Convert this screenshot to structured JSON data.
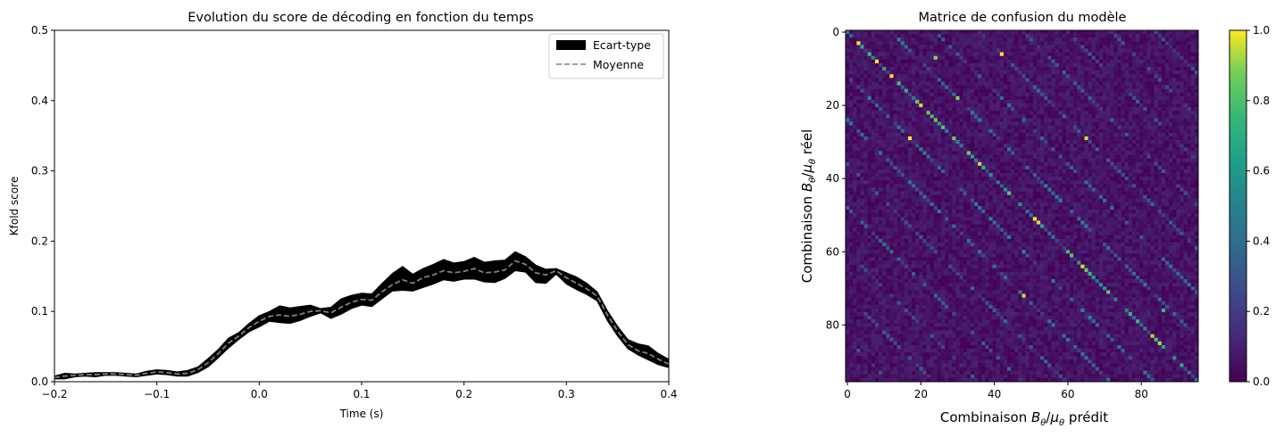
{
  "chart_data": [
    {
      "type": "line",
      "title": "Evolution du score de décoding en fonction du temps",
      "xlabel": "Time (s)",
      "ylabel": "Kfold score",
      "xlim": [
        -0.2,
        0.4
      ],
      "ylim": [
        0,
        0.5
      ],
      "xticks": [
        -0.2,
        -0.1,
        0.0,
        0.1,
        0.2,
        0.3,
        0.4
      ],
      "xtick_labels": [
        "−0.2",
        "−0.1",
        "0.0",
        "0.1",
        "0.2",
        "0.3",
        "0.4"
      ],
      "yticks": [
        0,
        0.1,
        0.2,
        0.3,
        0.4,
        0.5
      ],
      "ytick_labels": [
        "0.0",
        "0.1",
        "0.2",
        "0.3",
        "0.4",
        "0.5"
      ],
      "legend_position": "top-right",
      "legend": [
        "Ecart-type",
        "Moyenne"
      ],
      "grid": false,
      "x": [
        -0.2,
        -0.19,
        -0.18,
        -0.17,
        -0.16,
        -0.15,
        -0.14,
        -0.13,
        -0.12,
        -0.11,
        -0.1,
        -0.09,
        -0.08,
        -0.07,
        -0.06,
        -0.05,
        -0.04,
        -0.03,
        -0.02,
        -0.01,
        0.0,
        0.01,
        0.02,
        0.03,
        0.04,
        0.05,
        0.06,
        0.07,
        0.08,
        0.09,
        0.1,
        0.11,
        0.12,
        0.13,
        0.14,
        0.15,
        0.16,
        0.17,
        0.18,
        0.19,
        0.2,
        0.21,
        0.22,
        0.23,
        0.24,
        0.25,
        0.26,
        0.27,
        0.28,
        0.29,
        0.3,
        0.31,
        0.32,
        0.33,
        0.34,
        0.35,
        0.36,
        0.37,
        0.38,
        0.39,
        0.4
      ],
      "series": [
        {
          "name": "Moyenne",
          "color": "#808080",
          "style": "dashed",
          "values": [
            0.006,
            0.008,
            0.009,
            0.01,
            0.01,
            0.011,
            0.011,
            0.01,
            0.009,
            0.012,
            0.014,
            0.013,
            0.011,
            0.012,
            0.017,
            0.027,
            0.04,
            0.055,
            0.065,
            0.077,
            0.086,
            0.093,
            0.095,
            0.093,
            0.096,
            0.1,
            0.101,
            0.098,
            0.106,
            0.113,
            0.117,
            0.116,
            0.128,
            0.138,
            0.145,
            0.14,
            0.148,
            0.152,
            0.158,
            0.155,
            0.157,
            0.161,
            0.155,
            0.156,
            0.159,
            0.172,
            0.167,
            0.155,
            0.152,
            0.158,
            0.148,
            0.14,
            0.132,
            0.122,
            0.095,
            0.072,
            0.053,
            0.044,
            0.04,
            0.032,
            0.025
          ]
        },
        {
          "name": "Ecart-type",
          "color": "#000000",
          "upper": [
            0.008,
            0.012,
            0.011,
            0.012,
            0.013,
            0.013,
            0.013,
            0.012,
            0.011,
            0.015,
            0.017,
            0.016,
            0.014,
            0.016,
            0.021,
            0.033,
            0.046,
            0.062,
            0.07,
            0.083,
            0.094,
            0.1,
            0.108,
            0.105,
            0.107,
            0.109,
            0.104,
            0.106,
            0.118,
            0.123,
            0.126,
            0.125,
            0.14,
            0.154,
            0.164,
            0.153,
            0.161,
            0.167,
            0.174,
            0.169,
            0.171,
            0.177,
            0.17,
            0.172,
            0.173,
            0.185,
            0.178,
            0.166,
            0.16,
            0.161,
            0.155,
            0.149,
            0.14,
            0.128,
            0.101,
            0.079,
            0.06,
            0.054,
            0.051,
            0.04,
            0.032
          ],
          "lower": [
            0.004,
            0.004,
            0.007,
            0.008,
            0.007,
            0.009,
            0.009,
            0.008,
            0.007,
            0.009,
            0.011,
            0.01,
            0.008,
            0.008,
            0.013,
            0.021,
            0.034,
            0.048,
            0.06,
            0.071,
            0.078,
            0.086,
            0.084,
            0.083,
            0.087,
            0.093,
            0.098,
            0.09,
            0.096,
            0.104,
            0.109,
            0.107,
            0.118,
            0.129,
            0.13,
            0.129,
            0.134,
            0.139,
            0.145,
            0.143,
            0.146,
            0.146,
            0.142,
            0.141,
            0.147,
            0.158,
            0.156,
            0.141,
            0.14,
            0.153,
            0.139,
            0.131,
            0.124,
            0.115,
            0.087,
            0.065,
            0.047,
            0.038,
            0.031,
            0.024,
            0.02
          ]
        }
      ]
    },
    {
      "type": "heatmap",
      "title": "Matrice de confusion du modèle",
      "xlabel_prefix": "Combinaison ",
      "xlabel_B": "B",
      "xlabel_sep": "/",
      "xlabel_mu": "μ",
      "xlabel_theta": "θ",
      "xlabel_suffix": " prédit",
      "ylabel_suffix": " réel",
      "colormap": "viridis",
      "n": 96,
      "xticks": [
        0,
        20,
        40,
        60,
        80
      ],
      "yticks": [
        0,
        20,
        40,
        60,
        80
      ],
      "colorbar_ticks": [
        0.0,
        0.2,
        0.4,
        0.6,
        0.8,
        1.0
      ],
      "colorbar_tick_labels": [
        "0.0",
        "0.2",
        "0.4",
        "0.6",
        "0.8",
        "1.0"
      ],
      "vmin": 0,
      "vmax": 1,
      "background_level": 0.05,
      "diagonal_offsets": [
        0,
        12,
        24,
        36,
        48,
        60,
        72,
        84,
        -12,
        -24,
        -36,
        -48,
        -60,
        -72,
        -84
      ],
      "diagonal_levels": [
        0.85,
        0.45,
        0.4,
        0.35,
        0.35,
        0.3,
        0.3,
        0.3,
        0.45,
        0.4,
        0.35,
        0.35,
        0.3,
        0.3,
        0.3
      ],
      "highlight_cells": [
        [
          6,
          42,
          1.0
        ],
        [
          29,
          17,
          1.0
        ],
        [
          29,
          65,
          0.95
        ],
        [
          72,
          48,
          0.95
        ],
        [
          76,
          86,
          0.75
        ],
        [
          7,
          24,
          0.9
        ],
        [
          18,
          30,
          0.9
        ]
      ]
    }
  ]
}
